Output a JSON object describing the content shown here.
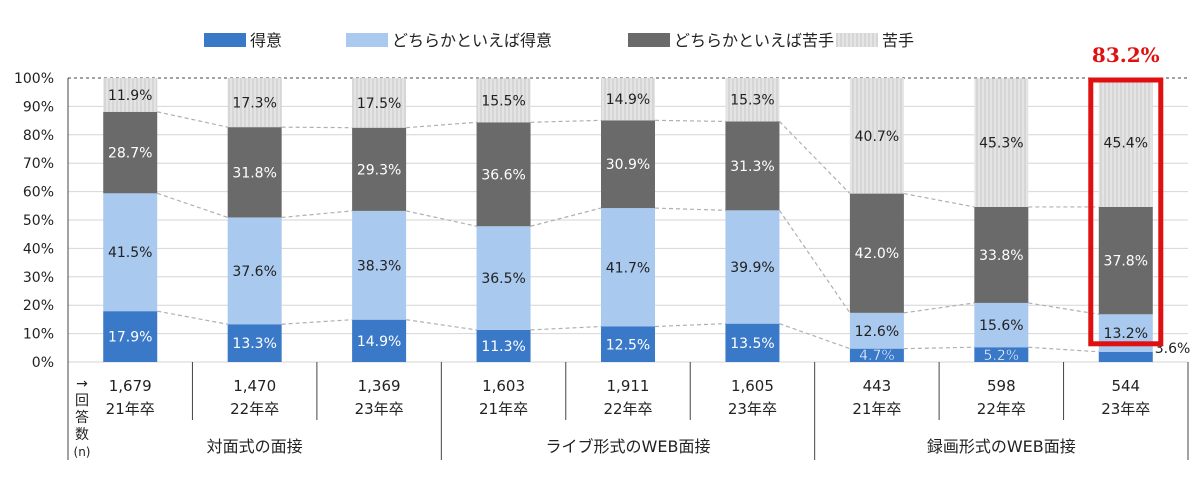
{
  "chart_data": {
    "type": "bar",
    "stacked": true,
    "ylim": [
      0,
      100
    ],
    "ytick_labels": [
      "0%",
      "10%",
      "20%",
      "30%",
      "40%",
      "50%",
      "60%",
      "70%",
      "80%",
      "90%",
      "100%"
    ],
    "grid": true,
    "legend_position": "top",
    "colors": {
      "得意": "#3a78c8",
      "どちらかといえば得意": "#a9c9ef",
      "どちらかといえば苦手": "#6a6a6a",
      "苦手": "#e4e4e4"
    },
    "series": [
      {
        "name": "得意",
        "values": [
          17.9,
          13.3,
          14.9,
          11.3,
          12.5,
          13.5,
          4.7,
          5.2,
          3.6
        ],
        "labels": [
          "17.9%",
          "13.3%",
          "14.9%",
          "11.3%",
          "12.5%",
          "13.5%",
          "4.7%",
          "5.2%",
          "3.6%"
        ]
      },
      {
        "name": "どちらかといえば得意",
        "values": [
          41.5,
          37.6,
          38.3,
          36.5,
          41.7,
          39.9,
          12.6,
          15.6,
          13.2
        ],
        "labels": [
          "41.5%",
          "37.6%",
          "38.3%",
          "36.5%",
          "41.7%",
          "39.9%",
          "12.6%",
          "15.6%",
          "13.2%"
        ]
      },
      {
        "name": "どちらかといえば苦手",
        "values": [
          28.7,
          31.8,
          29.3,
          36.6,
          30.9,
          31.3,
          42.0,
          33.8,
          37.8
        ],
        "labels": [
          "28.7%",
          "31.8%",
          "29.3%",
          "36.6%",
          "30.9%",
          "31.3%",
          "42.0%",
          "33.8%",
          "37.8%"
        ]
      },
      {
        "name": "苦手",
        "values": [
          11.9,
          17.3,
          17.5,
          15.5,
          14.9,
          15.3,
          40.7,
          45.3,
          45.4
        ],
        "labels": [
          "11.9%",
          "17.3%",
          "17.5%",
          "15.5%",
          "14.9%",
          "15.3%",
          "40.7%",
          "45.3%",
          "45.4%"
        ]
      }
    ],
    "categories": [
      {
        "count": "1,679",
        "year": "21年卒"
      },
      {
        "count": "1,470",
        "year": "22年卒"
      },
      {
        "count": "1,369",
        "year": "23年卒"
      },
      {
        "count": "1,603",
        "year": "21年卒"
      },
      {
        "count": "1,911",
        "year": "22年卒"
      },
      {
        "count": "1,605",
        "year": "23年卒"
      },
      {
        "count": "443",
        "year": "21年卒"
      },
      {
        "count": "598",
        "year": "22年卒"
      },
      {
        "count": "544",
        "year": "23年卒"
      }
    ],
    "groups": [
      "対面式の面接",
      "ライブ形式のWEB面接",
      "録画形式のWEB面接"
    ],
    "row_label_chars": [
      "→",
      "回",
      "答",
      "数",
      "(n)"
    ],
    "highlight": {
      "index": 8,
      "label": "83.2%",
      "color": "#e01010"
    }
  }
}
